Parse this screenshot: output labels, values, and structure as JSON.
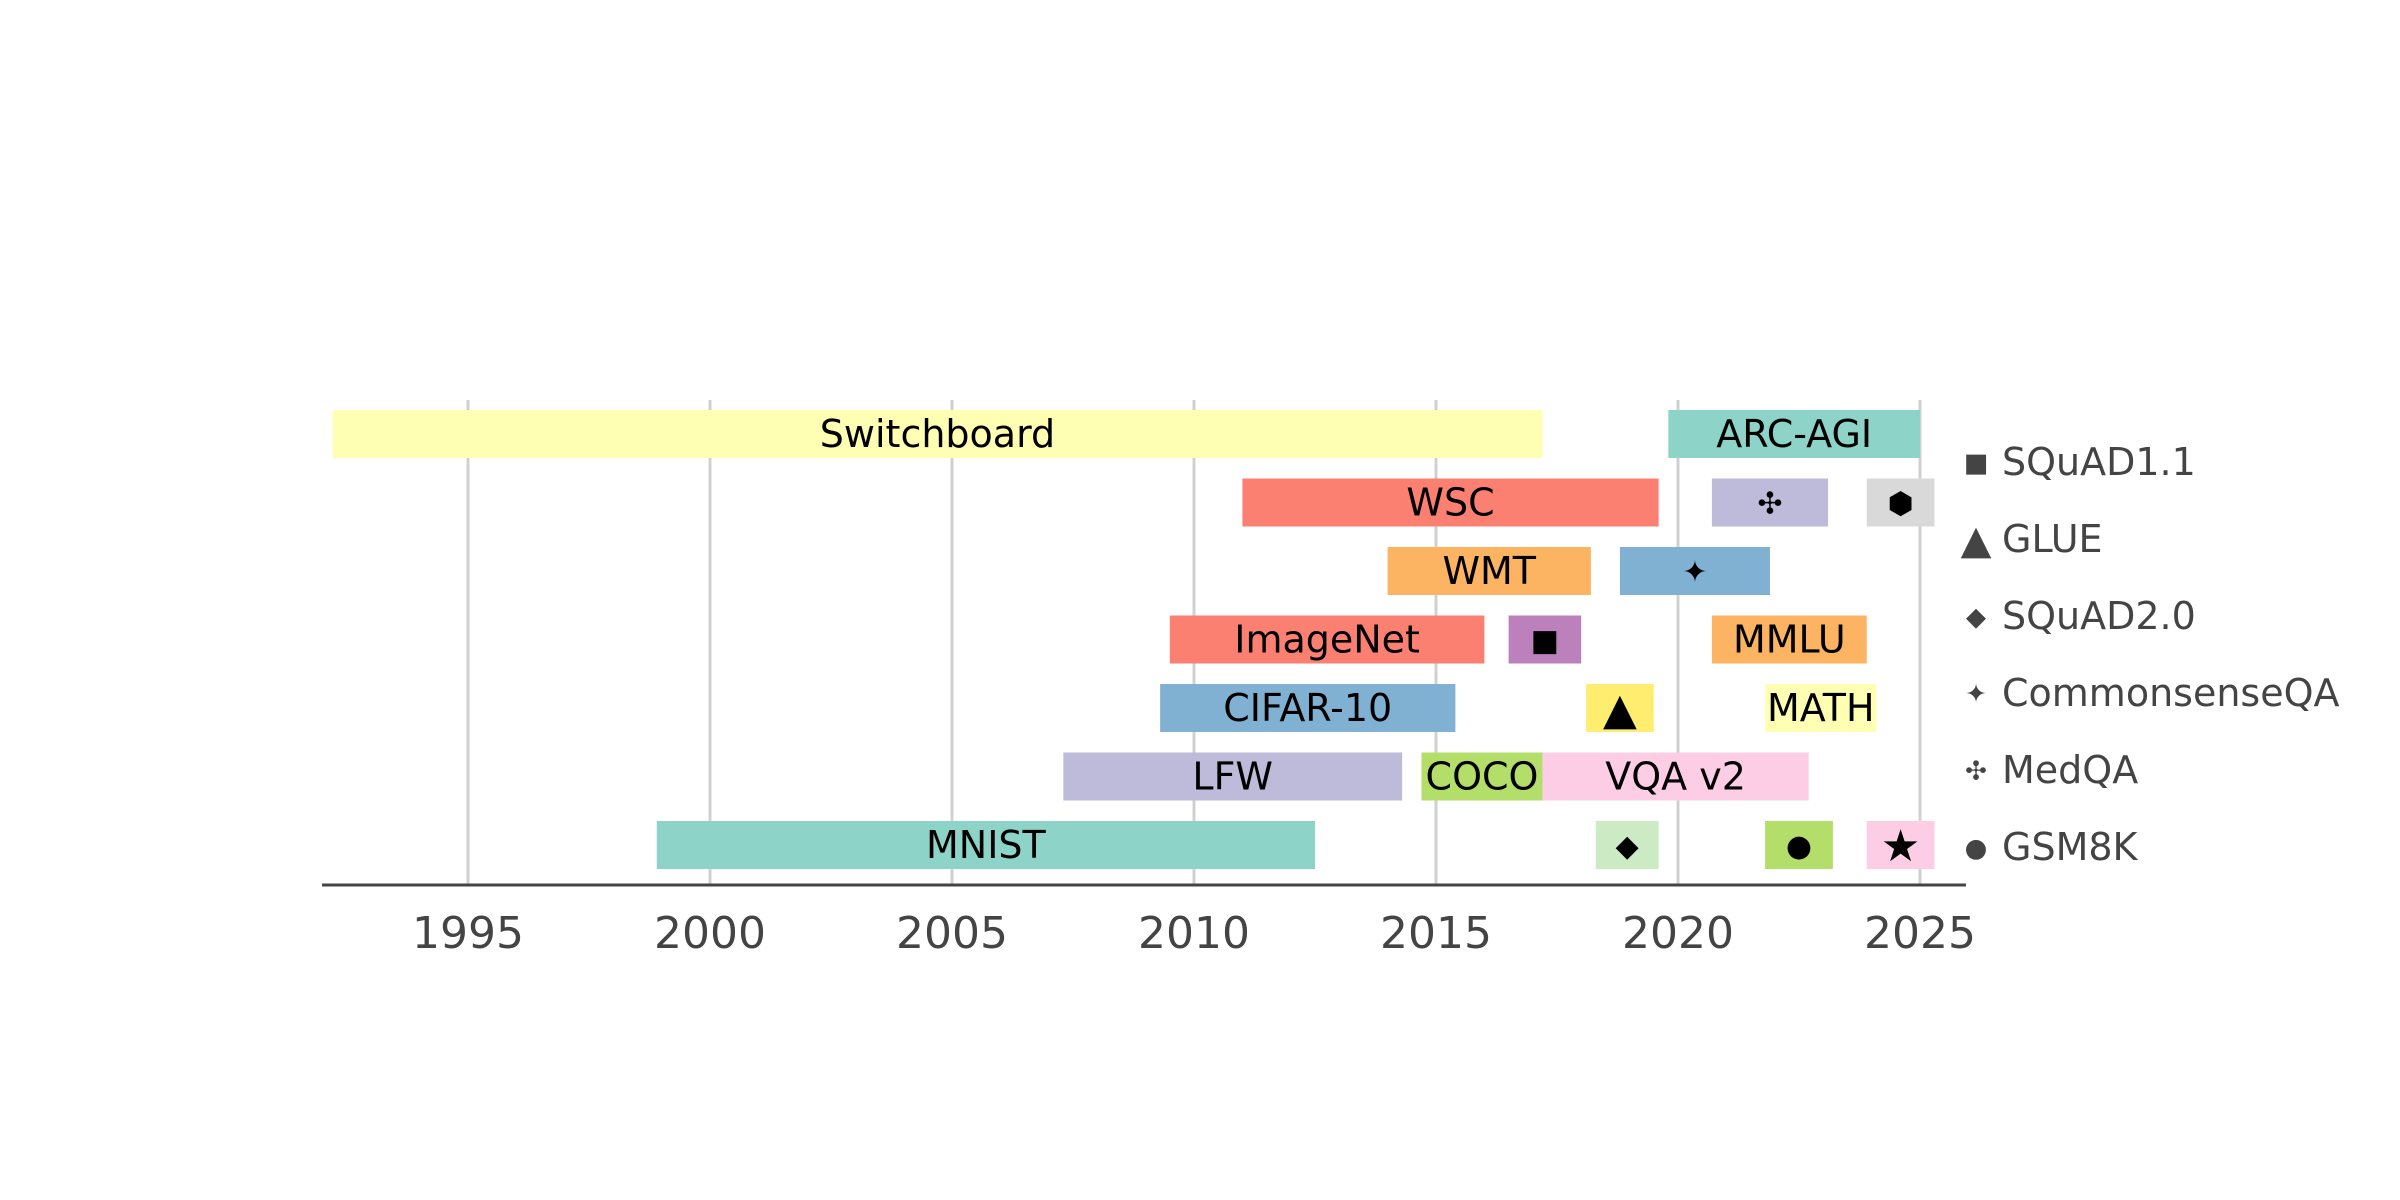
{
  "chart_data": {
    "type": "bar",
    "orientation": "horizontal-timeline",
    "title": "",
    "xlabel": "",
    "ylabel": "",
    "xlim": [
      1992,
      2026
    ],
    "xticks": [
      1995,
      2000,
      2005,
      2010,
      2015,
      2020,
      2025
    ],
    "grid": true,
    "legend_position": "right",
    "legend": [
      {
        "symbol": "■",
        "label": "SQuAD1.1"
      },
      {
        "symbol": "▲",
        "label": "GLUE"
      },
      {
        "symbol": "◆",
        "label": "SQuAD2.0"
      },
      {
        "symbol": "✦",
        "label": "CommonsenseQA"
      },
      {
        "symbol": "✣",
        "label": "MedQA"
      },
      {
        "symbol": "●",
        "label": "GSM8K"
      }
    ],
    "bars": [
      {
        "label": "Switchboard",
        "row": 0,
        "start": 1992.2,
        "end": 2017.2,
        "color": "#ffffb3"
      },
      {
        "label": "ARC-AGI",
        "row": 0,
        "start": 2019.8,
        "end": 2025.0,
        "color": "#8dd3c7"
      },
      {
        "label": "WSC",
        "row": 1,
        "start": 2011.0,
        "end": 2019.6,
        "color": "#fb8072"
      },
      {
        "label": "",
        "marker": "✣",
        "row": 1,
        "start": 2020.7,
        "end": 2023.1,
        "color": "#bebada"
      },
      {
        "label": "",
        "marker": "⬢",
        "row": 1,
        "start": 2023.9,
        "end": 2025.3,
        "color": "#d9d9d9"
      },
      {
        "label": "WMT",
        "row": 2,
        "start": 2014.0,
        "end": 2018.2,
        "color": "#fdb462"
      },
      {
        "label": "",
        "marker": "✦",
        "row": 2,
        "start": 2018.8,
        "end": 2021.9,
        "color": "#80b1d3"
      },
      {
        "label": "ImageNet",
        "row": 3,
        "start": 2009.5,
        "end": 2016.0,
        "color": "#fb8072"
      },
      {
        "label": "",
        "marker": "■",
        "row": 3,
        "start": 2016.5,
        "end": 2018.0,
        "color": "#bc80bd"
      },
      {
        "label": "MMLU",
        "row": 3,
        "start": 2020.7,
        "end": 2023.9,
        "color": "#fdb462"
      },
      {
        "label": "CIFAR-10",
        "row": 4,
        "start": 2009.3,
        "end": 2015.4,
        "color": "#80b1d3"
      },
      {
        "label": "",
        "marker": "▲",
        "row": 4,
        "start": 2018.1,
        "end": 2019.5,
        "color": "#ffed6f"
      },
      {
        "label": "MATH",
        "row": 4,
        "start": 2021.8,
        "end": 2024.1,
        "color": "#ffffb3"
      },
      {
        "label": "LFW",
        "row": 5,
        "start": 2007.3,
        "end": 2014.3,
        "color": "#bebada"
      },
      {
        "label": "COCO",
        "row": 5,
        "start": 2014.7,
        "end": 2017.2,
        "color": "#b3de69"
      },
      {
        "label": "VQA v2",
        "row": 5,
        "start": 2017.2,
        "end": 2022.7,
        "color": "#fccde5"
      },
      {
        "label": "MNIST",
        "row": 6,
        "start": 1998.9,
        "end": 2012.5,
        "color": "#8dd3c7"
      },
      {
        "label": "",
        "marker": "◆",
        "row": 6,
        "start": 2018.3,
        "end": 2019.6,
        "color": "#ccebc5"
      },
      {
        "label": "",
        "marker": "●",
        "row": 6,
        "start": 2021.8,
        "end": 2023.2,
        "color": "#b3de69"
      },
      {
        "label": "",
        "marker": "★",
        "row": 6,
        "start": 2023.9,
        "end": 2025.3,
        "color": "#fccde5"
      }
    ]
  }
}
